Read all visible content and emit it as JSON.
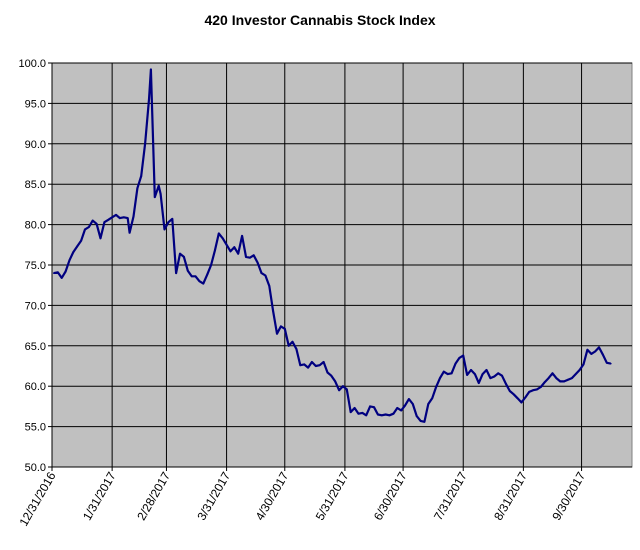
{
  "chart_data": {
    "type": "line",
    "title": "420 Investor Cannabis Stock Index",
    "xlabel": "",
    "ylabel": "",
    "ylim": [
      50,
      100
    ],
    "xlim": [
      "2016-12-31",
      "2017-10-26"
    ],
    "y_ticks": [
      "50.0",
      "55.0",
      "60.0",
      "65.0",
      "70.0",
      "75.0",
      "80.0",
      "85.0",
      "90.0",
      "95.0",
      "100.0"
    ],
    "x_ticks": [
      "12/31/2016",
      "1/31/2017",
      "2/28/2017",
      "3/31/2017",
      "4/30/2017",
      "5/31/2017",
      "6/30/2017",
      "7/31/2017",
      "8/31/2017",
      "9/30/2017"
    ],
    "grid": true,
    "legend": "none",
    "colors": {
      "plot_background": "#c0c0c0",
      "line": "#000080",
      "grid": "#000000"
    },
    "series": [
      {
        "values": [
          [
            "2017-01-01",
            74.0
          ],
          [
            "2017-01-03",
            74.1
          ],
          [
            "2017-01-05",
            73.4
          ],
          [
            "2017-01-07",
            74.2
          ],
          [
            "2017-01-09",
            75.6
          ],
          [
            "2017-01-11",
            76.6
          ],
          [
            "2017-01-13",
            77.3
          ],
          [
            "2017-01-15",
            78.0
          ],
          [
            "2017-01-17",
            79.4
          ],
          [
            "2017-01-19",
            79.7
          ],
          [
            "2017-01-21",
            80.5
          ],
          [
            "2017-01-23",
            80.1
          ],
          [
            "2017-01-25",
            78.3
          ],
          [
            "2017-01-27",
            80.3
          ],
          [
            "2017-01-29",
            80.6
          ],
          [
            "2017-01-31",
            80.9
          ],
          [
            "2017-02-02",
            81.2
          ],
          [
            "2017-02-04",
            80.8
          ],
          [
            "2017-02-06",
            80.9
          ],
          [
            "2017-02-08",
            80.8
          ],
          [
            "2017-02-09",
            79.0
          ],
          [
            "2017-02-11",
            81.0
          ],
          [
            "2017-02-13",
            84.5
          ],
          [
            "2017-02-15",
            86.0
          ],
          [
            "2017-02-17",
            90.0
          ],
          [
            "2017-02-19",
            95.5
          ],
          [
            "2017-02-20",
            99.2
          ],
          [
            "2017-02-22",
            83.4
          ],
          [
            "2017-02-24",
            84.8
          ],
          [
            "2017-02-25",
            83.8
          ],
          [
            "2017-02-27",
            79.4
          ],
          [
            "2017-03-01",
            80.3
          ],
          [
            "2017-03-03",
            80.7
          ],
          [
            "2017-03-05",
            74.0
          ],
          [
            "2017-03-07",
            76.4
          ],
          [
            "2017-03-09",
            76.0
          ],
          [
            "2017-03-11",
            74.3
          ],
          [
            "2017-03-13",
            73.6
          ],
          [
            "2017-03-15",
            73.6
          ],
          [
            "2017-03-17",
            73.0
          ],
          [
            "2017-03-19",
            72.7
          ],
          [
            "2017-03-21",
            73.8
          ],
          [
            "2017-03-23",
            75.0
          ],
          [
            "2017-03-25",
            76.8
          ],
          [
            "2017-03-27",
            78.9
          ],
          [
            "2017-03-29",
            78.3
          ],
          [
            "2017-03-31",
            77.5
          ],
          [
            "2017-04-02",
            76.7
          ],
          [
            "2017-04-04",
            77.2
          ],
          [
            "2017-04-06",
            76.4
          ],
          [
            "2017-04-08",
            78.6
          ],
          [
            "2017-04-10",
            76.0
          ],
          [
            "2017-04-12",
            75.9
          ],
          [
            "2017-04-14",
            76.2
          ],
          [
            "2017-04-16",
            75.3
          ],
          [
            "2017-04-18",
            74.0
          ],
          [
            "2017-04-20",
            73.7
          ],
          [
            "2017-04-22",
            72.4
          ],
          [
            "2017-04-24",
            69.3
          ],
          [
            "2017-04-26",
            66.5
          ],
          [
            "2017-04-28",
            67.4
          ],
          [
            "2017-04-30",
            67.1
          ],
          [
            "2017-05-02",
            65.0
          ],
          [
            "2017-05-04",
            65.5
          ],
          [
            "2017-05-06",
            64.6
          ],
          [
            "2017-05-08",
            62.6
          ],
          [
            "2017-05-10",
            62.7
          ],
          [
            "2017-05-12",
            62.3
          ],
          [
            "2017-05-14",
            63.0
          ],
          [
            "2017-05-16",
            62.5
          ],
          [
            "2017-05-18",
            62.6
          ],
          [
            "2017-05-20",
            63.0
          ],
          [
            "2017-05-22",
            61.7
          ],
          [
            "2017-05-24",
            61.3
          ],
          [
            "2017-05-26",
            60.6
          ],
          [
            "2017-05-28",
            59.5
          ],
          [
            "2017-05-30",
            60.0
          ],
          [
            "2017-06-01",
            59.6
          ],
          [
            "2017-06-03",
            56.8
          ],
          [
            "2017-06-05",
            57.3
          ],
          [
            "2017-06-07",
            56.6
          ],
          [
            "2017-06-09",
            56.7
          ],
          [
            "2017-06-11",
            56.4
          ],
          [
            "2017-06-13",
            57.5
          ],
          [
            "2017-06-15",
            57.4
          ],
          [
            "2017-06-17",
            56.5
          ],
          [
            "2017-06-19",
            56.4
          ],
          [
            "2017-06-21",
            56.5
          ],
          [
            "2017-06-23",
            56.4
          ],
          [
            "2017-06-25",
            56.6
          ],
          [
            "2017-06-27",
            57.3
          ],
          [
            "2017-06-29",
            57.0
          ],
          [
            "2017-07-01",
            57.6
          ],
          [
            "2017-07-03",
            58.4
          ],
          [
            "2017-07-05",
            57.8
          ],
          [
            "2017-07-07",
            56.3
          ],
          [
            "2017-07-09",
            55.7
          ],
          [
            "2017-07-11",
            55.6
          ],
          [
            "2017-07-13",
            57.8
          ],
          [
            "2017-07-15",
            58.5
          ],
          [
            "2017-07-17",
            59.9
          ],
          [
            "2017-07-19",
            61.0
          ],
          [
            "2017-07-21",
            61.8
          ],
          [
            "2017-07-23",
            61.5
          ],
          [
            "2017-07-25",
            61.6
          ],
          [
            "2017-07-27",
            62.8
          ],
          [
            "2017-07-29",
            63.5
          ],
          [
            "2017-07-31",
            63.8
          ],
          [
            "2017-08-02",
            61.4
          ],
          [
            "2017-08-04",
            62.0
          ],
          [
            "2017-08-06",
            61.5
          ],
          [
            "2017-08-08",
            60.4
          ],
          [
            "2017-08-10",
            61.5
          ],
          [
            "2017-08-12",
            62.0
          ],
          [
            "2017-08-14",
            61.0
          ],
          [
            "2017-08-16",
            61.2
          ],
          [
            "2017-08-18",
            61.6
          ],
          [
            "2017-08-20",
            61.3
          ],
          [
            "2017-08-22",
            60.3
          ],
          [
            "2017-08-24",
            59.4
          ],
          [
            "2017-08-26",
            59.0
          ],
          [
            "2017-08-28",
            58.5
          ],
          [
            "2017-08-30",
            58.0
          ],
          [
            "2017-09-01",
            58.6
          ],
          [
            "2017-09-03",
            59.3
          ],
          [
            "2017-09-05",
            59.5
          ],
          [
            "2017-09-07",
            59.6
          ],
          [
            "2017-09-09",
            59.9
          ],
          [
            "2017-09-11",
            60.5
          ],
          [
            "2017-09-13",
            61.0
          ],
          [
            "2017-09-15",
            61.6
          ],
          [
            "2017-09-17",
            61.0
          ],
          [
            "2017-09-19",
            60.6
          ],
          [
            "2017-09-21",
            60.6
          ],
          [
            "2017-09-23",
            60.8
          ],
          [
            "2017-09-25",
            61.0
          ],
          [
            "2017-09-27",
            61.5
          ],
          [
            "2017-09-29",
            62.0
          ],
          [
            "2017-10-01",
            62.7
          ],
          [
            "2017-10-03",
            64.5
          ],
          [
            "2017-10-05",
            64.0
          ],
          [
            "2017-10-07",
            64.3
          ],
          [
            "2017-10-09",
            64.8
          ],
          [
            "2017-10-11",
            63.9
          ],
          [
            "2017-10-13",
            62.9
          ],
          [
            "2017-10-15",
            62.8
          ]
        ]
      }
    ]
  }
}
